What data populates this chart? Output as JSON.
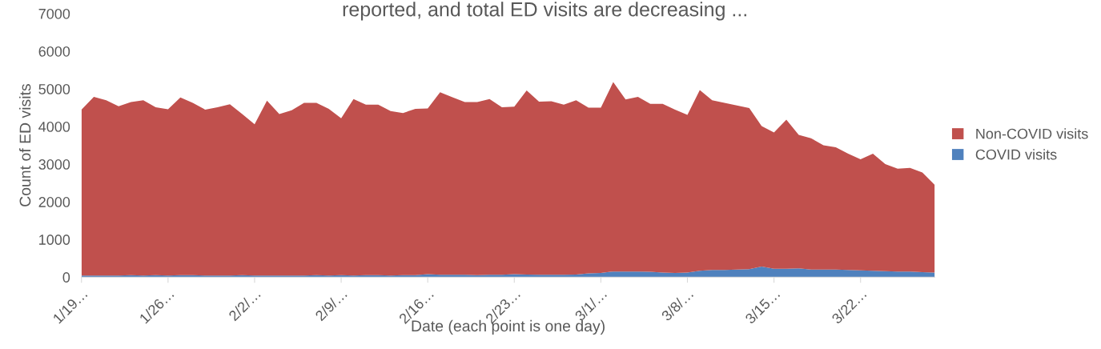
{
  "chart_data": {
    "type": "area",
    "title": "reported, and total ED visits are decreasing ...",
    "xlabel": "Date (each point is one day)",
    "ylabel": "Count of ED visits",
    "categories": [
      "1/19…",
      null,
      null,
      null,
      null,
      null,
      null,
      "1/26…",
      null,
      null,
      null,
      null,
      null,
      null,
      "2/2/…",
      null,
      null,
      null,
      null,
      null,
      null,
      "2/9/…",
      null,
      null,
      null,
      null,
      null,
      null,
      "2/16…",
      null,
      null,
      null,
      null,
      null,
      null,
      "2/23…",
      null,
      null,
      null,
      null,
      null,
      null,
      "3/1/…",
      null,
      null,
      null,
      null,
      null,
      null,
      "3/8/…",
      null,
      null,
      null,
      null,
      null,
      null,
      "3/15…",
      null,
      null,
      null,
      null,
      null,
      null,
      "3/22…",
      null,
      null,
      null,
      null,
      null,
      null
    ],
    "stacked": true,
    "series": [
      {
        "name": "COVID visits",
        "color": "#4f81bd",
        "values": [
          40,
          40,
          40,
          40,
          50,
          40,
          50,
          40,
          50,
          50,
          40,
          40,
          40,
          50,
          40,
          40,
          40,
          40,
          40,
          50,
          40,
          50,
          40,
          50,
          50,
          40,
          50,
          50,
          80,
          60,
          60,
          60,
          50,
          60,
          60,
          80,
          70,
          60,
          60,
          60,
          70,
          100,
          110,
          150,
          150,
          150,
          140,
          120,
          110,
          120,
          170,
          190,
          190,
          200,
          210,
          280,
          220,
          220,
          230,
          200,
          200,
          200,
          190,
          180,
          170,
          160,
          150,
          150,
          130,
          120
        ]
      },
      {
        "name": "Non-COVID visits",
        "color": "#c0504d",
        "values": [
          4410,
          4750,
          4660,
          4500,
          4600,
          4660,
          4460,
          4420,
          4720,
          4580,
          4410,
          4470,
          4550,
          4280,
          4020,
          4650,
          4290,
          4390,
          4590,
          4580,
          4430,
          4170,
          4690,
          4530,
          4530,
          4370,
          4310,
          4420,
          4400,
          4850,
          4720,
          4590,
          4600,
          4670,
          4450,
          4450,
          4890,
          4600,
          4610,
          4520,
          4630,
          4400,
          4390,
          5030,
          4570,
          4640,
          4460,
          4480,
          4340,
          4190,
          4800,
          4510,
          4440,
          4360,
          4280,
          3730,
          3620,
          3960,
          3550,
          3490,
          3300,
          3250,
          3090,
          2950,
          3110,
          2840,
          2730,
          2750,
          2650,
          2330
        ]
      }
    ],
    "ylim": [
      0,
      7000
    ],
    "yticks": [
      0,
      1000,
      2000,
      3000,
      4000,
      5000,
      6000,
      7000
    ],
    "grid": false,
    "legend": "right"
  }
}
